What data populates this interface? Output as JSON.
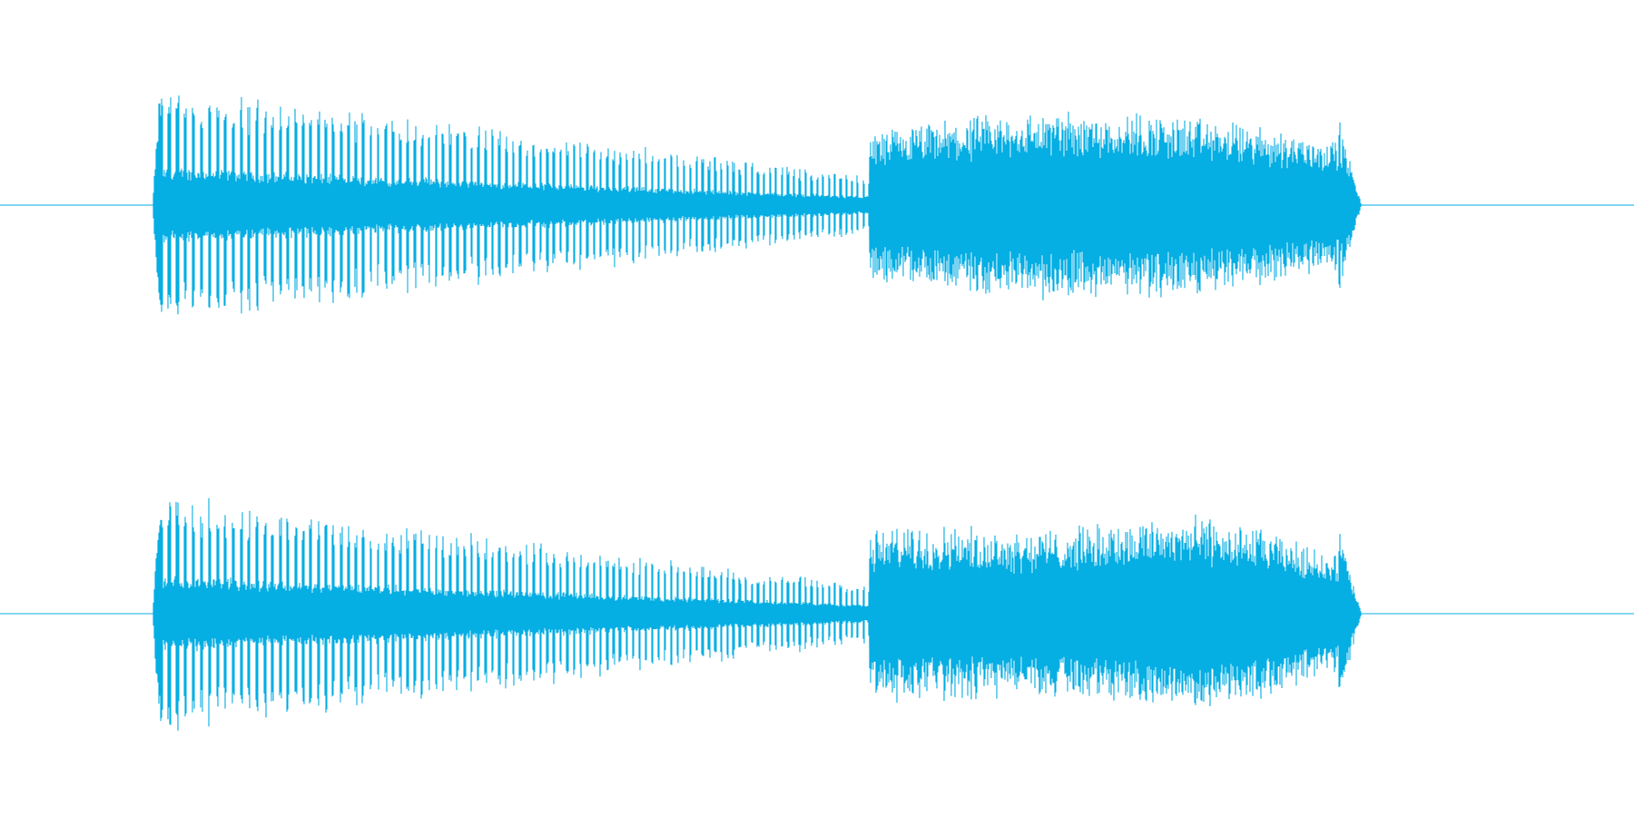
{
  "waveform": {
    "color": "#05AEE3",
    "channels": [
      {
        "channel": "left"
      },
      {
        "channel": "right"
      }
    ]
  }
}
